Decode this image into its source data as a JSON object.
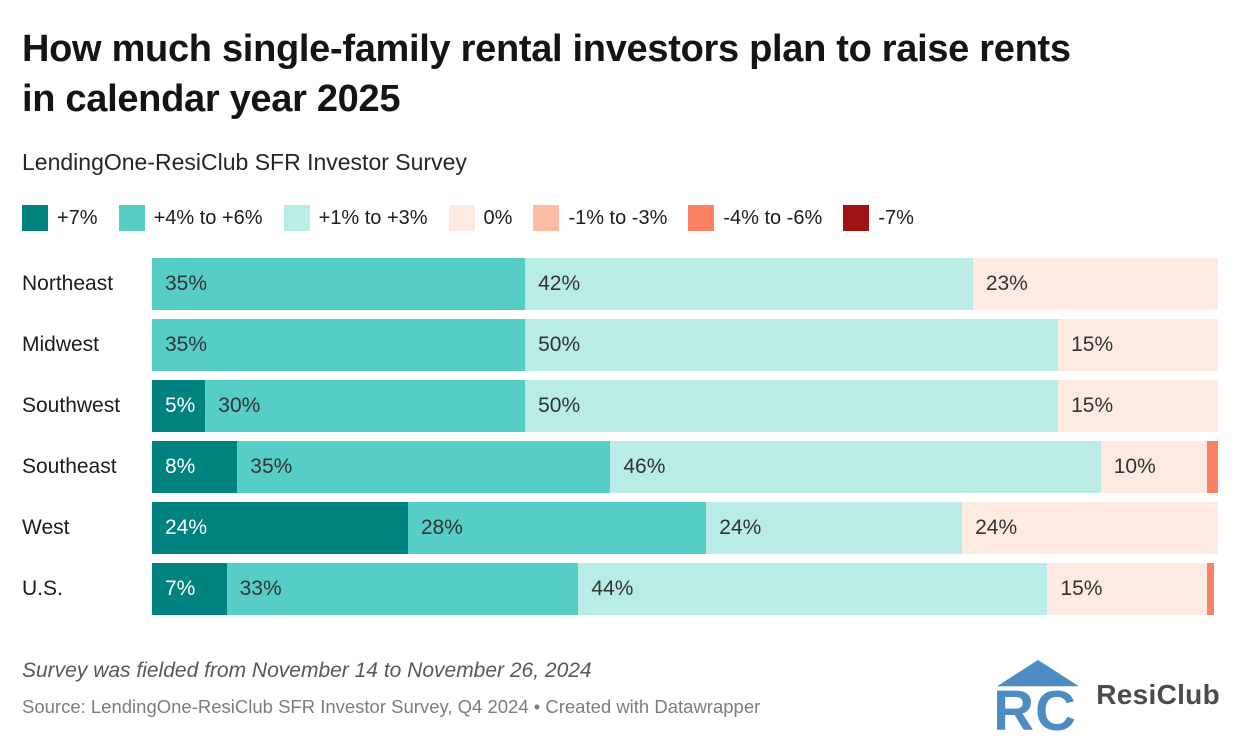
{
  "header": {
    "title_line1": "How much single-family rental investors plan to raise rents",
    "title_line2": "in calendar year 2025",
    "subtitle": "LendingOne-ResiClub SFR Investor Survey"
  },
  "colors": {
    "logo_blue": "#4d8cc2",
    "title_text": "#141414",
    "segment_text": "#333333",
    "segment_text_on_dark": "#ffffff"
  },
  "chart_data": {
    "type": "bar",
    "variant": "stacked-horizontal-100pct",
    "orientation": "horizontal",
    "unit": "%",
    "xlim": [
      0,
      100
    ],
    "grid": false,
    "legend_position": "top",
    "categories": [
      "Northeast",
      "Midwest",
      "Southwest",
      "Southeast",
      "West",
      "U.S."
    ],
    "series_labels": [
      "+7%",
      "+4% to +6%",
      "+1% to +3%",
      "0%",
      "-1% to -3%",
      "-4% to -6%",
      "-7%"
    ],
    "series_colors": {
      "+7%": "#008280",
      "+4% to +6%": "#56cec5",
      "+1% to +3%": "#b9ece7",
      "0%": "#fdeae1",
      "-1% to -3%": "#fbbda4",
      "-4% to -6%": "#fb8165",
      "-7%": "#a01314"
    },
    "rows": [
      {
        "region": "Northeast",
        "segments": [
          {
            "series": "+4% to +6%",
            "value": 35,
            "label": "35%"
          },
          {
            "series": "+1% to +3%",
            "value": 42,
            "label": "42%"
          },
          {
            "series": "0%",
            "value": 23,
            "label": "23%"
          }
        ]
      },
      {
        "region": "Midwest",
        "segments": [
          {
            "series": "+4% to +6%",
            "value": 35,
            "label": "35%"
          },
          {
            "series": "+1% to +3%",
            "value": 50,
            "label": "50%"
          },
          {
            "series": "0%",
            "value": 15,
            "label": "15%"
          }
        ]
      },
      {
        "region": "Southwest",
        "segments": [
          {
            "series": "+7%",
            "value": 5,
            "label": "5%"
          },
          {
            "series": "+4% to +6%",
            "value": 30,
            "label": "30%"
          },
          {
            "series": "+1% to +3%",
            "value": 50,
            "label": "50%"
          },
          {
            "series": "0%",
            "value": 15,
            "label": "15%"
          }
        ]
      },
      {
        "region": "Southeast",
        "segments": [
          {
            "series": "+7%",
            "value": 8,
            "label": "8%"
          },
          {
            "series": "+4% to +6%",
            "value": 35,
            "label": "35%"
          },
          {
            "series": "+1% to +3%",
            "value": 46,
            "label": "46%"
          },
          {
            "series": "0%",
            "value": 10,
            "label": "10%"
          },
          {
            "series": "-4% to -6%",
            "value": 1,
            "label": ""
          }
        ]
      },
      {
        "region": "West",
        "segments": [
          {
            "series": "+7%",
            "value": 24,
            "label": "24%"
          },
          {
            "series": "+4% to +6%",
            "value": 28,
            "label": "28%"
          },
          {
            "series": "+1% to +3%",
            "value": 24,
            "label": "24%"
          },
          {
            "series": "0%",
            "value": 24,
            "label": "24%"
          }
        ]
      },
      {
        "region": "U.S.",
        "segments": [
          {
            "series": "+7%",
            "value": 7,
            "label": "7%"
          },
          {
            "series": "+4% to +6%",
            "value": 33,
            "label": "33%"
          },
          {
            "series": "+1% to +3%",
            "value": 44,
            "label": "44%"
          },
          {
            "series": "0%",
            "value": 15,
            "label": "15%"
          },
          {
            "series": "-4% to -6%",
            "value": 0.6,
            "label": ""
          }
        ]
      }
    ]
  },
  "footer": {
    "note": "Survey was fielded from November 14 to November 26, 2024",
    "source": "Source: LendingOne-ResiClub SFR Investor Survey, Q4 2024 • Created with Datawrapper",
    "logo_text": "ResiClub"
  }
}
